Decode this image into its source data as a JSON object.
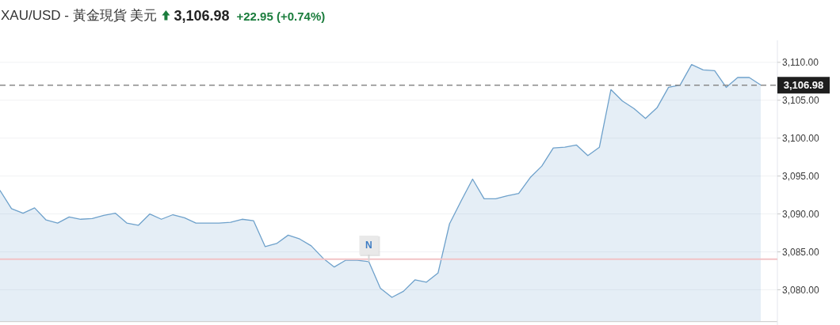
{
  "chart_data": {
    "type": "area",
    "title": "XAU/USD - 黃金現貨 美元",
    "annotations": [
      "3,106.98",
      "+22.95 (+0.74%)",
      {
        "text": "N",
        "y": 3083.7
      }
    ],
    "categories": [
      null,
      null,
      null,
      null,
      null,
      null,
      null,
      null,
      null,
      null,
      null,
      null,
      null,
      null,
      null,
      null,
      null,
      null,
      null,
      null,
      null,
      null,
      null,
      null,
      null,
      null,
      null,
      null,
      null,
      null,
      null,
      null,
      null,
      null,
      null,
      null,
      null,
      null,
      null,
      null,
      null,
      null,
      null,
      null,
      null,
      null,
      null,
      null,
      null,
      null,
      null,
      null,
      null,
      null,
      null,
      null,
      null,
      null,
      null,
      null,
      null,
      null,
      null,
      null,
      null,
      null,
      null
    ],
    "values": [
      3093.1,
      3090.7,
      3090.1,
      3090.8,
      3089.2,
      3088.8,
      3089.6,
      3089.3,
      3089.4,
      3089.8,
      3090.1,
      3088.8,
      3088.5,
      3090.0,
      3089.3,
      3089.9,
      3089.5,
      3088.8,
      3088.8,
      3088.8,
      3088.9,
      3089.3,
      3089.1,
      3085.7,
      3086.1,
      3087.2,
      3086.7,
      3085.8,
      3084.2,
      3083.0,
      3083.9,
      3083.9,
      3083.7,
      3080.2,
      3079.0,
      3079.8,
      3081.3,
      3081.0,
      3082.2,
      3088.7,
      3091.7,
      3094.6,
      3092.0,
      3092.0,
      3092.4,
      3092.7,
      3094.8,
      3096.3,
      3098.7,
      3098.8,
      3099.1,
      3097.7,
      3098.8,
      3106.4,
      3104.9,
      3103.9,
      3102.6,
      3104.0,
      3106.7,
      3107.0,
      3109.7,
      3109.0,
      3108.9,
      3106.7,
      3108.0,
      3108.0,
      3107.0
    ],
    "color": "#6ea1cb",
    "ylim": [
      3075.8,
      3112.9
    ],
    "yticks": [
      {
        "value": 3080,
        "label": "3,080.00"
      },
      {
        "value": 3085,
        "label": "3,085.00"
      },
      {
        "value": 3090,
        "label": "3,090.00"
      },
      {
        "value": 3095,
        "label": "3,095.00"
      },
      {
        "value": 3100,
        "label": "3,100.00"
      },
      {
        "value": 3105,
        "label": "3,105.00"
      },
      {
        "value": 3110,
        "label": "3,110.00"
      }
    ],
    "grid": "y",
    "tick_labels": "y",
    "ref_lines": [
      {
        "axis": "y",
        "value": 3106.98,
        "label": "3,106.98",
        "color": "#8a8a8a",
        "line_style": "dashed"
      },
      {
        "axis": "y",
        "value": 3084.03,
        "color": "#f2c3c6"
      }
    ]
  }
}
